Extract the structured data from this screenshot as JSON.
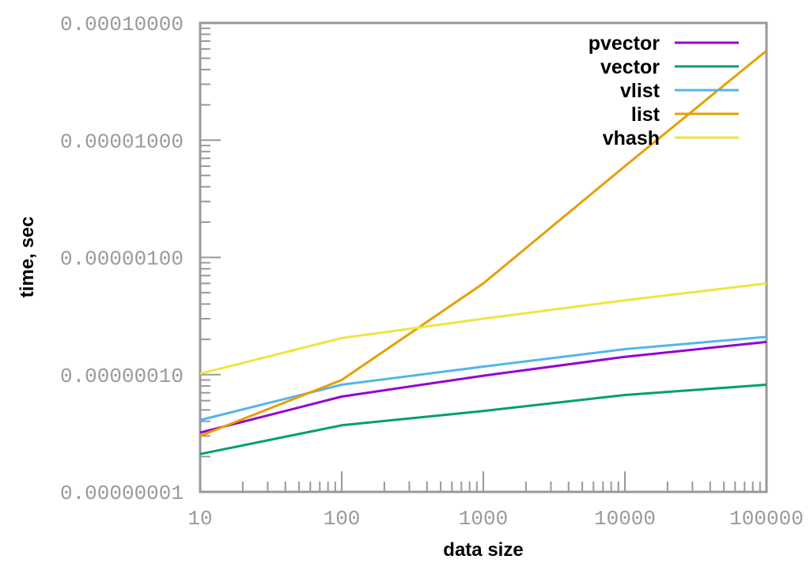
{
  "chart_data": {
    "type": "line",
    "xlabel": "data size",
    "ylabel": "time, sec",
    "x_scale": "log",
    "y_scale": "log",
    "xlim": [
      10,
      100000
    ],
    "ylim": [
      1e-08,
      0.0001
    ],
    "x_ticks": [
      "10",
      "100",
      "1000",
      "10000",
      "100000"
    ],
    "y_ticks": [
      "0.00000001",
      "0.00000010",
      "0.00000100",
      "0.00001000",
      "0.00010000"
    ],
    "grid": false,
    "legend_position": "top-right",
    "x": [
      10,
      100,
      1000,
      10000,
      100000
    ],
    "series": [
      {
        "name": "pvector",
        "color": "#9400d3",
        "values": [
          3.2e-08,
          6.5e-08,
          9.8e-08,
          1.42e-07,
          1.9e-07
        ]
      },
      {
        "name": "vector",
        "color": "#009e73",
        "values": [
          2.1e-08,
          3.7e-08,
          4.9e-08,
          6.7e-08,
          8.2e-08
        ]
      },
      {
        "name": "vlist",
        "color": "#56b4e9",
        "values": [
          4.1e-08,
          8.2e-08,
          1.17e-07,
          1.65e-07,
          2.1e-07
        ]
      },
      {
        "name": "list",
        "color": "#e69f00",
        "values": [
          3e-08,
          9e-08,
          6e-07,
          6e-06,
          5.8e-05
        ]
      },
      {
        "name": "vhash",
        "color": "#f0e442",
        "values": [
          1.02e-07,
          2.05e-07,
          3e-07,
          4.3e-07,
          6e-07
        ]
      }
    ]
  }
}
